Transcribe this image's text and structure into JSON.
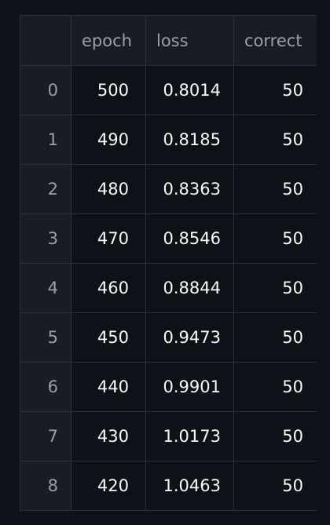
{
  "table": {
    "headers": [
      "",
      "epoch",
      "loss",
      "correct"
    ],
    "rows": [
      {
        "index": "0",
        "epoch": "500",
        "loss": "0.8014",
        "correct": "50"
      },
      {
        "index": "1",
        "epoch": "490",
        "loss": "0.8185",
        "correct": "50"
      },
      {
        "index": "2",
        "epoch": "480",
        "loss": "0.8363",
        "correct": "50"
      },
      {
        "index": "3",
        "epoch": "470",
        "loss": "0.8546",
        "correct": "50"
      },
      {
        "index": "4",
        "epoch": "460",
        "loss": "0.8844",
        "correct": "50"
      },
      {
        "index": "5",
        "epoch": "450",
        "loss": "0.9473",
        "correct": "50"
      },
      {
        "index": "6",
        "epoch": "440",
        "loss": "0.9901",
        "correct": "50"
      },
      {
        "index": "7",
        "epoch": "430",
        "loss": "1.0173",
        "correct": "50"
      },
      {
        "index": "8",
        "epoch": "420",
        "loss": "1.0463",
        "correct": "50"
      }
    ]
  },
  "colors": {
    "background": "#0e1117",
    "header_background": "#1a1c24",
    "grid_line": "#2d3039",
    "header_text": "#9aa0aa",
    "cell_text": "#fafafa"
  }
}
